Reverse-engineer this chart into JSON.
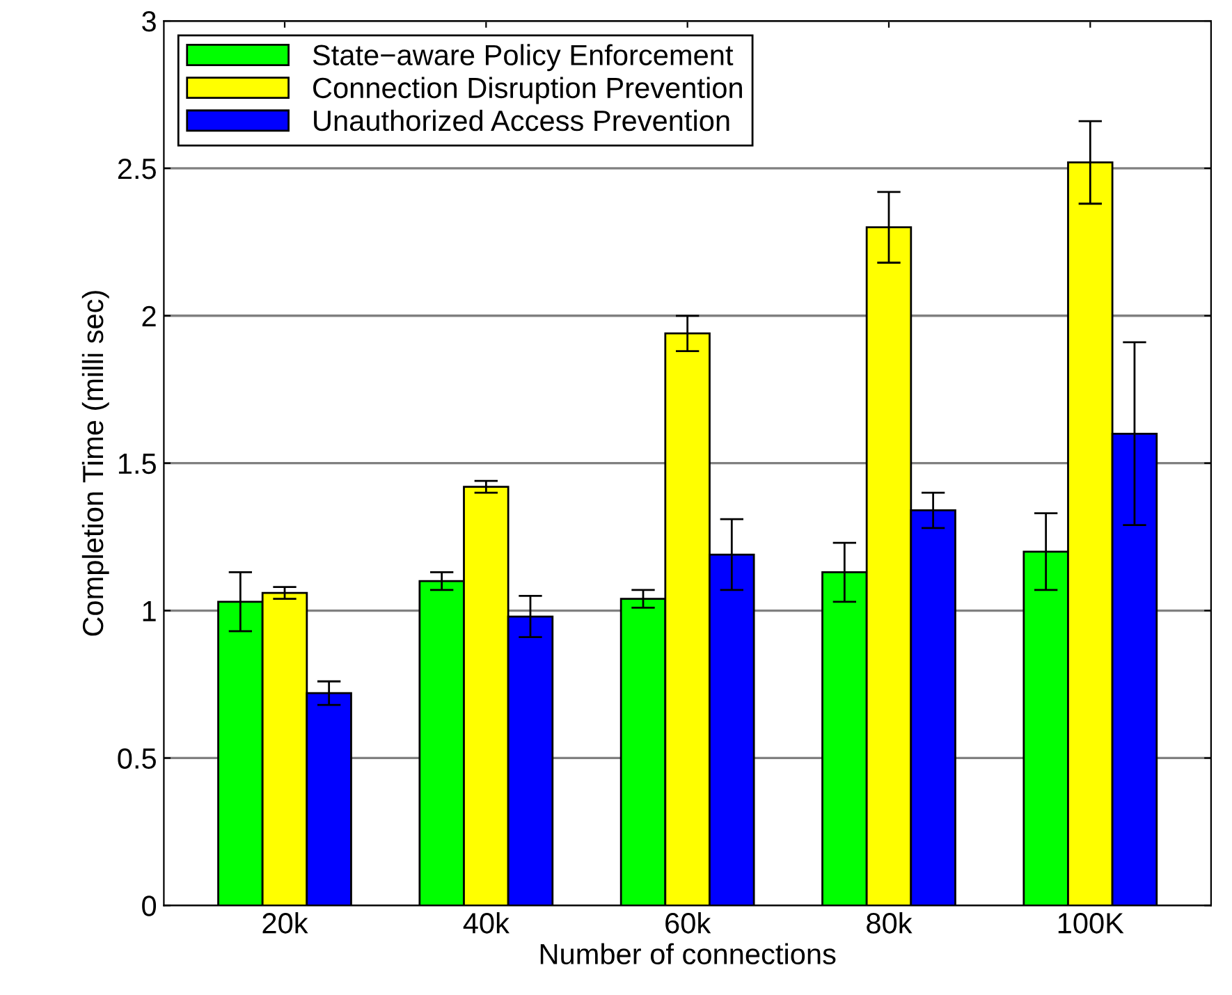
{
  "chart_data": {
    "type": "bar",
    "xlabel": "Number of connections",
    "ylabel": "Completion Time (milli sec)",
    "categories": [
      "20k",
      "40k",
      "60k",
      "80k",
      "100K"
    ],
    "series": [
      {
        "name": "State−aware Policy Enforcement",
        "color": "#00ff00",
        "values": [
          1.03,
          1.1,
          1.04,
          1.13,
          1.2
        ],
        "errors": [
          0.1,
          0.03,
          0.03,
          0.1,
          0.13
        ]
      },
      {
        "name": "Connection Disruption Prevention",
        "color": "#ffff00",
        "values": [
          1.06,
          1.42,
          1.94,
          2.3,
          2.52
        ],
        "errors": [
          0.02,
          0.02,
          0.06,
          0.12,
          0.14
        ]
      },
      {
        "name": "Unauthorized Access Prevention",
        "color": "#0000ff",
        "values": [
          0.72,
          0.98,
          1.19,
          1.34,
          1.6
        ],
        "errors": [
          0.04,
          0.07,
          0.12,
          0.06,
          0.31
        ]
      }
    ],
    "ylim": [
      0,
      3
    ],
    "yticks": [
      0,
      0.5,
      1,
      1.5,
      2,
      2.5,
      3
    ],
    "grid": "y",
    "legend": "top left"
  }
}
